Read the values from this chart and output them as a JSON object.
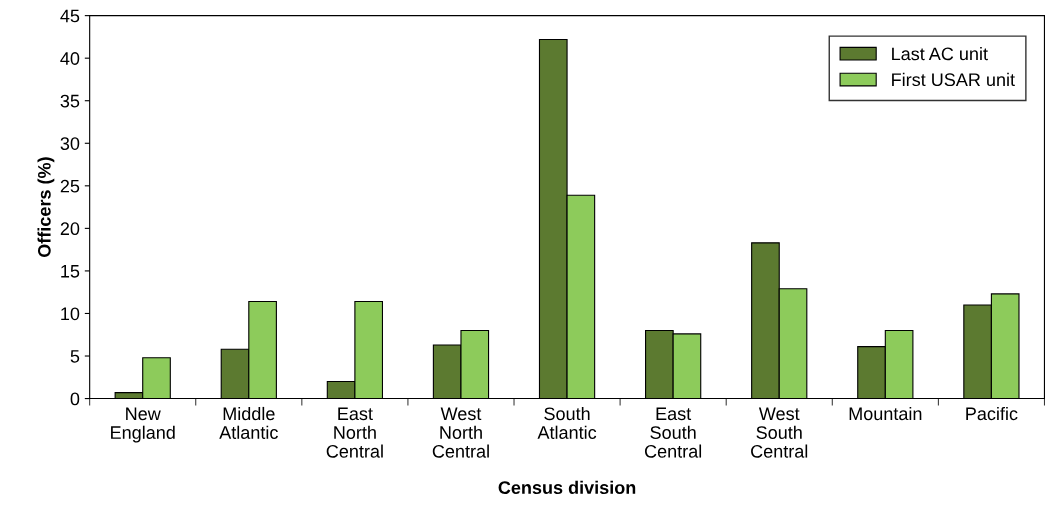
{
  "chart_data": {
    "type": "bar",
    "xlabel": "Census division",
    "ylabel": "Officers (%)",
    "categories": [
      "New\nEngland",
      "Middle\nAtlantic",
      "East\nNorth\nCentral",
      "West\nNorth\nCentral",
      "South\nAtlantic",
      "East\nSouth\nCentral",
      "West\nSouth\nCentral",
      "Mountain",
      "Pacific"
    ],
    "series": [
      {
        "name": "Last AC unit",
        "color": "#5c7a30",
        "values": [
          0.7,
          5.8,
          2.0,
          6.3,
          42.2,
          8.0,
          18.3,
          6.1,
          11.0
        ]
      },
      {
        "name": "First USAR unit",
        "color": "#8dcb5b",
        "values": [
          4.8,
          11.4,
          11.4,
          8.0,
          23.9,
          7.6,
          12.9,
          8.0,
          12.3
        ]
      }
    ],
    "ylim": [
      0,
      45
    ],
    "yticks": [
      0,
      5,
      10,
      15,
      20,
      25,
      30,
      35,
      40,
      45
    ],
    "grid": false,
    "legend": "top right"
  }
}
